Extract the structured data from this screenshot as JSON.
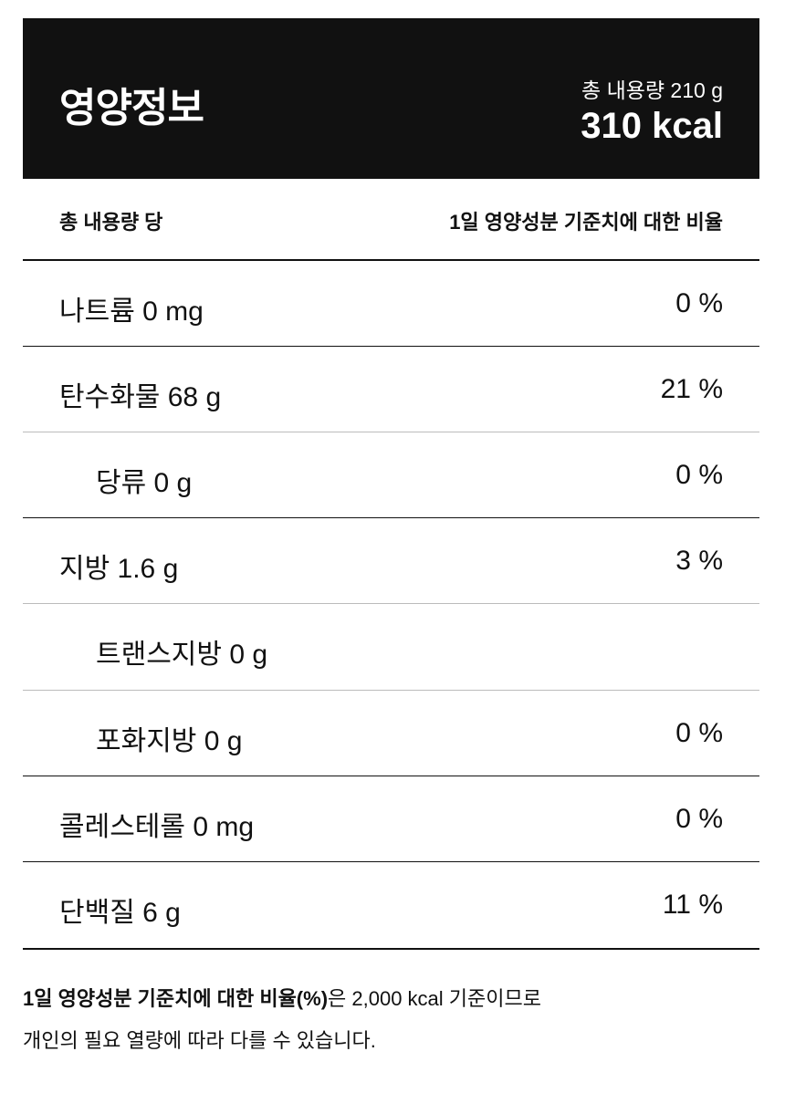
{
  "header": {
    "title": "영양정보",
    "total_amount": "총 내용량 210 g",
    "calories": "310 kcal"
  },
  "columns": {
    "left": "총 내용량 당",
    "right": "1일 영양성분 기준치에 대한 비율"
  },
  "rows": [
    {
      "name": "나트륨 0 mg",
      "pct": "0 %",
      "sub": false
    },
    {
      "name": "탄수화물 68 g",
      "pct": "21 %",
      "sub": false
    },
    {
      "name": "당류 0 g",
      "pct": "0 %",
      "sub": true
    },
    {
      "name": "지방 1.6 g",
      "pct": "3 %",
      "sub": false
    },
    {
      "name": "트랜스지방 0 g",
      "pct": "",
      "sub": true
    },
    {
      "name": "포화지방 0 g",
      "pct": "0 %",
      "sub": true
    },
    {
      "name": "콜레스테롤 0 mg",
      "pct": "0 %",
      "sub": false
    },
    {
      "name": "단백질 6 g",
      "pct": "11 %",
      "sub": false
    }
  ],
  "footer": {
    "bold": "1일 영양성분 기준치에 대한 비율(%)",
    "line1_rest": "은 2,000 kcal 기준이므로",
    "line2": "개인의 필요 열량에 따라 다를 수 있습니다."
  }
}
